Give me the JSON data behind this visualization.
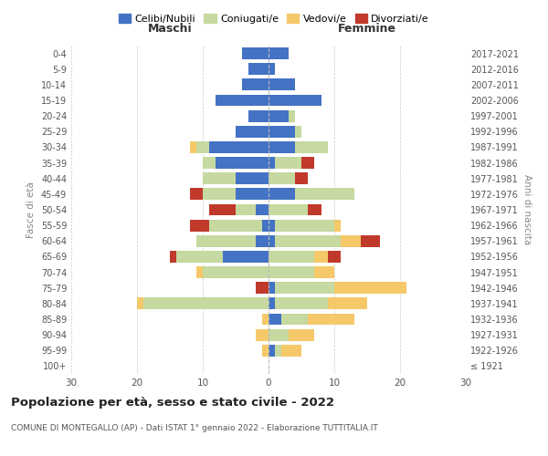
{
  "age_groups": [
    "100+",
    "95-99",
    "90-94",
    "85-89",
    "80-84",
    "75-79",
    "70-74",
    "65-69",
    "60-64",
    "55-59",
    "50-54",
    "45-49",
    "40-44",
    "35-39",
    "30-34",
    "25-29",
    "20-24",
    "15-19",
    "10-14",
    "5-9",
    "0-4"
  ],
  "birth_years": [
    "≤ 1921",
    "1922-1926",
    "1927-1931",
    "1932-1936",
    "1937-1941",
    "1942-1946",
    "1947-1951",
    "1952-1956",
    "1957-1961",
    "1962-1966",
    "1967-1971",
    "1972-1976",
    "1977-1981",
    "1982-1986",
    "1987-1991",
    "1992-1996",
    "1997-2001",
    "2002-2006",
    "2007-2011",
    "2012-2016",
    "2017-2021"
  ],
  "males": {
    "celibi": [
      0,
      0,
      0,
      0,
      0,
      0,
      0,
      7,
      2,
      1,
      2,
      5,
      5,
      8,
      9,
      5,
      3,
      8,
      4,
      3,
      4
    ],
    "coniugati": [
      0,
      0,
      0,
      0,
      19,
      0,
      10,
      7,
      9,
      8,
      3,
      5,
      5,
      2,
      2,
      0,
      0,
      0,
      0,
      0,
      0
    ],
    "vedovi": [
      0,
      1,
      2,
      1,
      1,
      0,
      1,
      0,
      0,
      0,
      0,
      0,
      0,
      0,
      1,
      0,
      0,
      0,
      0,
      0,
      0
    ],
    "divorziati": [
      0,
      0,
      0,
      0,
      0,
      2,
      0,
      1,
      0,
      3,
      4,
      2,
      0,
      0,
      0,
      0,
      0,
      0,
      0,
      0,
      0
    ]
  },
  "females": {
    "nubili": [
      0,
      1,
      0,
      2,
      1,
      1,
      0,
      0,
      1,
      1,
      0,
      4,
      0,
      1,
      4,
      4,
      3,
      8,
      4,
      1,
      3
    ],
    "coniugate": [
      0,
      1,
      3,
      4,
      8,
      9,
      7,
      7,
      10,
      9,
      6,
      9,
      4,
      4,
      5,
      1,
      1,
      0,
      0,
      0,
      0
    ],
    "vedove": [
      0,
      3,
      4,
      7,
      6,
      11,
      3,
      2,
      3,
      1,
      0,
      0,
      0,
      0,
      0,
      0,
      0,
      0,
      0,
      0,
      0
    ],
    "divorziate": [
      0,
      0,
      0,
      0,
      0,
      0,
      0,
      2,
      3,
      0,
      2,
      0,
      2,
      2,
      0,
      0,
      0,
      0,
      0,
      0,
      0
    ]
  },
  "color_celibi": "#4472c4",
  "color_coniugati": "#c5d9a0",
  "color_vedovi": "#f5c96a",
  "color_divorziati": "#c0392b",
  "xlim": 30,
  "title": "Popolazione per età, sesso e stato civile - 2022",
  "subtitle": "COMUNE DI MONTEGALLO (AP) - Dati ISTAT 1° gennaio 2022 - Elaborazione TUTTITALIA.IT",
  "ylabel_left": "Fasce di età",
  "ylabel_right": "Anni di nascita",
  "xlabel_maschi": "Maschi",
  "xlabel_femmine": "Femmine",
  "bg_color": "#ffffff",
  "grid_color": "#cccccc"
}
